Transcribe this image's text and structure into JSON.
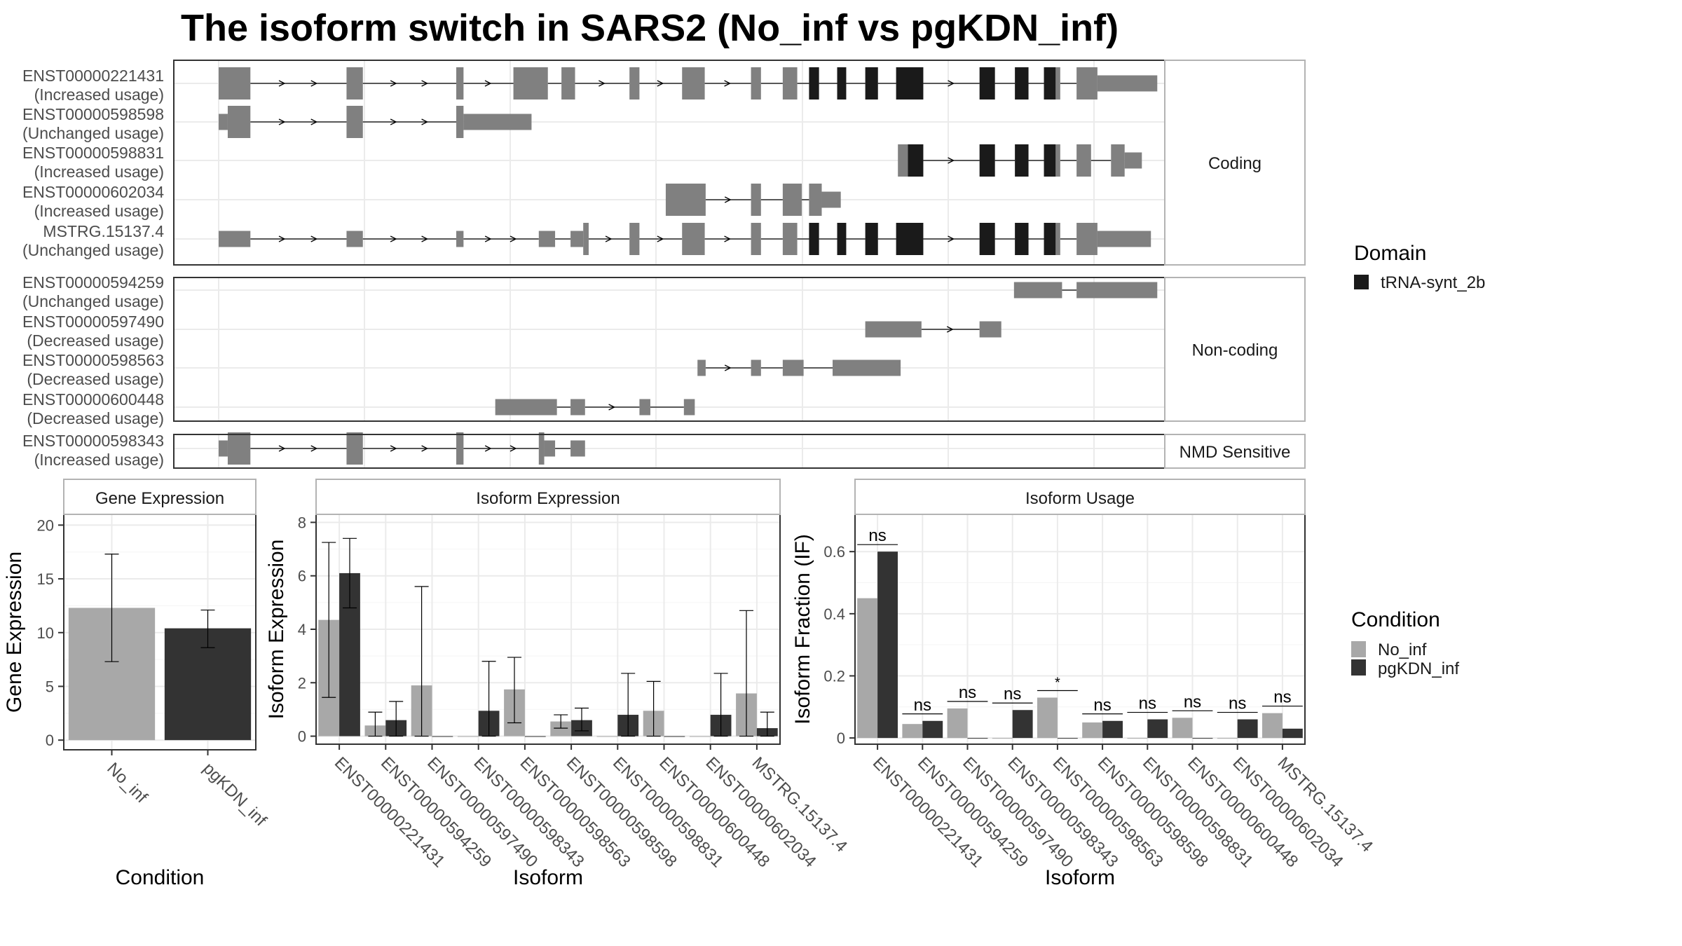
{
  "title": "The isoform switch in SARS2 (No_inf vs pgKDN_inf)",
  "colors": {
    "exon": "#808080",
    "domain": "#1a1a1a",
    "no_inf": "#a8a8a8",
    "pgkdn_inf": "#333333",
    "grid": "#ebebeb",
    "panel_border": "#333333",
    "strip_border": "#b3b3b3"
  },
  "structure": {
    "coord_range": [
      0,
      1000
    ],
    "panels": [
      {
        "label": "Coding",
        "isoforms": [
          {
            "id": "ENST00000221431",
            "usage": "(Increased usage)",
            "exons": [
              [
                0,
                35,
                "w"
              ],
              [
                141,
                159,
                "w"
              ],
              [
                262,
                270,
                "w"
              ],
              [
                325,
                363,
                "w"
              ],
              [
                378,
                393,
                "w"
              ],
              [
                453,
                464,
                "w"
              ],
              [
                511,
                536,
                "w"
              ],
              [
                587,
                598,
                "w"
              ],
              [
                622,
                638,
                "w"
              ],
              [
                651,
                662,
                "d"
              ],
              [
                682,
                692,
                "d"
              ],
              [
                713,
                727,
                "d"
              ],
              [
                747,
                777,
                "d"
              ],
              [
                839,
                856,
                "d"
              ],
              [
                878,
                893,
                "d"
              ],
              [
                910,
                923,
                "d"
              ],
              [
                923,
                928,
                "w"
              ],
              [
                946,
                969,
                "w"
              ],
              [
                969,
                1035,
                "n"
              ]
            ]
          },
          {
            "id": "ENST00000598598",
            "usage": "(Unchanged usage)",
            "exons": [
              [
                0,
                10,
                "n"
              ],
              [
                10,
                35,
                "w"
              ],
              [
                141,
                159,
                "w"
              ],
              [
                262,
                270,
                "w"
              ],
              [
                270,
                345,
                "n"
              ]
            ]
          },
          {
            "id": "ENST00000598831",
            "usage": "(Increased usage)",
            "exons": [
              [
                749,
                760,
                "w"
              ],
              [
                760,
                777,
                "d"
              ],
              [
                839,
                856,
                "d"
              ],
              [
                878,
                893,
                "d"
              ],
              [
                910,
                923,
                "d"
              ],
              [
                923,
                928,
                "w"
              ],
              [
                946,
                962,
                "w"
              ],
              [
                984,
                999,
                "w"
              ],
              [
                999,
                1018,
                "n"
              ]
            ]
          },
          {
            "id": "ENST00000602034",
            "usage": "(Increased usage)",
            "exons": [
              [
                493,
                537,
                "w"
              ],
              [
                587,
                598,
                "w"
              ],
              [
                622,
                643,
                "w"
              ],
              [
                651,
                665,
                "w"
              ],
              [
                665,
                686,
                "n"
              ]
            ]
          },
          {
            "id": "MSTRG.15137.4",
            "usage": "(Unchanged usage)",
            "exons": [
              [
                0,
                35,
                "n"
              ],
              [
                141,
                159,
                "n"
              ],
              [
                262,
                270,
                "n"
              ],
              [
                353,
                371,
                "n"
              ],
              [
                388,
                402,
                "n"
              ],
              [
                402,
                408,
                "w"
              ],
              [
                453,
                464,
                "w"
              ],
              [
                511,
                536,
                "w"
              ],
              [
                587,
                598,
                "w"
              ],
              [
                622,
                638,
                "w"
              ],
              [
                651,
                662,
                "d"
              ],
              [
                682,
                692,
                "d"
              ],
              [
                713,
                727,
                "d"
              ],
              [
                747,
                777,
                "d"
              ],
              [
                839,
                856,
                "d"
              ],
              [
                878,
                893,
                "d"
              ],
              [
                910,
                923,
                "d"
              ],
              [
                923,
                928,
                "w"
              ],
              [
                946,
                969,
                "w"
              ],
              [
                969,
                1028,
                "n"
              ]
            ]
          }
        ]
      },
      {
        "label": "Non-coding",
        "isoforms": [
          {
            "id": "ENST00000594259",
            "usage": "(Unchanged usage)",
            "exons": [
              [
                877,
                930,
                "n"
              ],
              [
                946,
                1035,
                "n"
              ]
            ]
          },
          {
            "id": "ENST00000597490",
            "usage": "(Decreased usage)",
            "exons": [
              [
                713,
                775,
                "n"
              ],
              [
                839,
                863,
                "n"
              ]
            ]
          },
          {
            "id": "ENST00000598563",
            "usage": "(Decreased usage)",
            "exons": [
              [
                528,
                537,
                "n"
              ],
              [
                587,
                598,
                "n"
              ],
              [
                622,
                645,
                "n"
              ],
              [
                677,
                752,
                "n"
              ]
            ]
          },
          {
            "id": "ENST00000600448",
            "usage": "(Decreased usage)",
            "exons": [
              [
                305,
                373,
                "n"
              ],
              [
                388,
                404,
                "n"
              ],
              [
                464,
                476,
                "n"
              ],
              [
                513,
                525,
                "n"
              ]
            ]
          }
        ]
      },
      {
        "label": "NMD Sensitive",
        "isoforms": [
          {
            "id": "ENST00000598343",
            "usage": "(Increased usage)",
            "exons": [
              [
                0,
                10,
                "n"
              ],
              [
                10,
                35,
                "w"
              ],
              [
                141,
                159,
                "w"
              ],
              [
                262,
                270,
                "w"
              ],
              [
                353,
                359,
                "w"
              ],
              [
                359,
                371,
                "n"
              ],
              [
                388,
                404,
                "n"
              ]
            ]
          }
        ]
      }
    ]
  },
  "legend_domain": {
    "title": "Domain",
    "items": [
      {
        "label": "tRNA-synt_2b",
        "color": "#1a1a1a"
      }
    ]
  },
  "legend_condition": {
    "title": "Condition",
    "items": [
      {
        "label": "No_inf",
        "color": "#a8a8a8"
      },
      {
        "label": "pgKDN_inf",
        "color": "#333333"
      }
    ]
  },
  "chart_data": [
    {
      "type": "bar",
      "title": "Gene Expression",
      "xlabel": "Condition",
      "ylabel": "Gene Expression",
      "ylim": [
        -0.9,
        21
      ],
      "yticks": [
        0,
        5,
        10,
        15,
        20
      ],
      "categories": [
        "No_inf",
        "pgKDN_inf"
      ],
      "values": [
        12.3,
        10.4
      ],
      "errors": [
        [
          7.3,
          17.3
        ],
        [
          8.6,
          12.1
        ]
      ],
      "series_colors": [
        "#a8a8a8",
        "#333333"
      ]
    },
    {
      "type": "bar",
      "title": "Isoform Expression",
      "xlabel": "Isoform",
      "ylabel": "Isoform Expression",
      "ylim": [
        -0.3,
        8.3
      ],
      "yticks": [
        0,
        2,
        4,
        6,
        8
      ],
      "categories": [
        "ENST00000221431",
        "ENST00000594259",
        "ENST00000597490",
        "ENST00000598343",
        "ENST00000598563",
        "ENST00000598598",
        "ENST00000598831",
        "ENST00000600448",
        "ENST00000602034",
        "MSTRG.15137.4"
      ],
      "series": [
        {
          "name": "No_inf",
          "values": [
            4.35,
            0.4,
            1.9,
            0.0,
            1.75,
            0.55,
            0.0,
            0.95,
            0.0,
            1.6
          ],
          "errors": [
            [
              1.45,
              7.25
            ],
            [
              0.0,
              0.9
            ],
            [
              0.0,
              5.6
            ],
            null,
            [
              0.5,
              2.95
            ],
            [
              0.3,
              0.8
            ],
            null,
            [
              0.0,
              2.05
            ],
            null,
            [
              0.0,
              4.7
            ]
          ]
        },
        {
          "name": "pgKDN_inf",
          "values": [
            6.1,
            0.6,
            0.0,
            0.95,
            0.0,
            0.6,
            0.8,
            0.0,
            0.8,
            0.3
          ],
          "errors": [
            [
              4.8,
              7.4
            ],
            [
              0.0,
              1.3
            ],
            null,
            [
              0.0,
              2.8
            ],
            null,
            [
              0.2,
              1.05
            ],
            [
              0.0,
              2.35
            ],
            null,
            [
              0.0,
              2.35
            ],
            [
              0.0,
              0.9
            ]
          ]
        }
      ]
    },
    {
      "type": "bar",
      "title": "Isoform Usage",
      "xlabel": "Isoform",
      "ylabel": "Isoform Fraction (IF)",
      "ylim": [
        -0.02,
        0.72
      ],
      "yticks": [
        0.0,
        0.2,
        0.4,
        0.6
      ],
      "categories": [
        "ENST00000221431",
        "ENST00000594259",
        "ENST00000597490",
        "ENST00000598343",
        "ENST00000598563",
        "ENST00000598598",
        "ENST00000598831",
        "ENST00000600448",
        "ENST00000602034",
        "MSTRG.15137.4"
      ],
      "series": [
        {
          "name": "No_inf",
          "values": [
            0.45,
            0.045,
            0.095,
            0.0,
            0.13,
            0.05,
            0.0,
            0.065,
            0.0,
            0.08
          ]
        },
        {
          "name": "pgKDN_inf",
          "values": [
            0.6,
            0.055,
            0.0,
            0.09,
            0.0,
            0.055,
            0.06,
            0.0,
            0.06,
            0.03
          ]
        }
      ],
      "annotations": [
        "ns",
        "ns",
        "ns",
        "ns",
        "*",
        "ns",
        "ns",
        "ns",
        "ns",
        "ns"
      ]
    }
  ]
}
